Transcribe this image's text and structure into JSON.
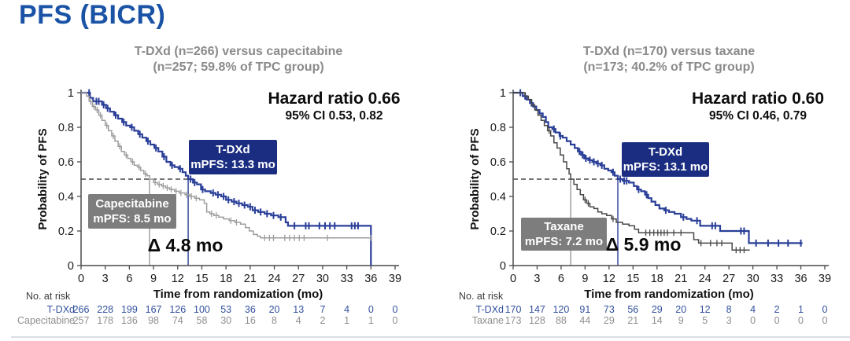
{
  "page": {
    "title": "PFS (BICR)"
  },
  "chart_data": [
    {
      "type": "line",
      "variant": "kaplan-meier",
      "title_lines": [
        "T-DXd (n=266) versus capecitabine",
        "(n=257; 59.8% of TPC group)"
      ],
      "hazard_ratio": "Hazard ratio 0.66",
      "ci": "95% CI 0.53, 0.82",
      "delta_label": "Δ 4.8 mo",
      "xlabel": "Time from randomization (mo)",
      "ylabel": "Probability of PFS",
      "xlim": [
        0,
        39
      ],
      "ylim": [
        0,
        1
      ],
      "xticks": [
        0,
        3,
        6,
        9,
        12,
        15,
        18,
        21,
        24,
        27,
        30,
        33,
        36,
        39
      ],
      "yticks": [
        0,
        0.2,
        0.4,
        0.6,
        0.8,
        1
      ],
      "median_rule_y": 0.5,
      "series": [
        {
          "name": "T-DXd",
          "role": "tdxd",
          "color": "#2a3f98",
          "median": 13.3,
          "box_lines": [
            "T-DXd",
            "mPFS: 13.3 mo"
          ],
          "points": [
            [
              0,
              1.0
            ],
            [
              1.1,
              0.97
            ],
            [
              1.5,
              0.95
            ],
            [
              2.6,
              0.93
            ],
            [
              3.1,
              0.91
            ],
            [
              3.6,
              0.89
            ],
            [
              4.1,
              0.87
            ],
            [
              4.6,
              0.85
            ],
            [
              5.1,
              0.83
            ],
            [
              5.6,
              0.81
            ],
            [
              6.1,
              0.8
            ],
            [
              6.6,
              0.78
            ],
            [
              7.1,
              0.76
            ],
            [
              7.6,
              0.74
            ],
            [
              8.1,
              0.72
            ],
            [
              8.6,
              0.7
            ],
            [
              9.1,
              0.68
            ],
            [
              9.6,
              0.66
            ],
            [
              10.1,
              0.63
            ],
            [
              10.6,
              0.6
            ],
            [
              11.1,
              0.58
            ],
            [
              11.6,
              0.57
            ],
            [
              12.1,
              0.56
            ],
            [
              12.6,
              0.54
            ],
            [
              13.0,
              0.52
            ],
            [
              13.3,
              0.5
            ],
            [
              13.9,
              0.48
            ],
            [
              14.4,
              0.47
            ],
            [
              14.9,
              0.44
            ],
            [
              15.4,
              0.43
            ],
            [
              16.1,
              0.42
            ],
            [
              16.7,
              0.41
            ],
            [
              17.4,
              0.4
            ],
            [
              18.0,
              0.38
            ],
            [
              18.7,
              0.37
            ],
            [
              19.3,
              0.36
            ],
            [
              20.0,
              0.35
            ],
            [
              20.7,
              0.34
            ],
            [
              21.3,
              0.32
            ],
            [
              22.0,
              0.31
            ],
            [
              22.8,
              0.3
            ],
            [
              23.6,
              0.29
            ],
            [
              24.5,
              0.28
            ],
            [
              25.4,
              0.25
            ],
            [
              25.7,
              0.23
            ],
            [
              36.0,
              0.23
            ],
            [
              36.0,
              0
            ]
          ],
          "censors": [
            1.0,
            1.9,
            2.2,
            2.8,
            3.3,
            4.3,
            5.3,
            6.3,
            7.3,
            8.3,
            9.3,
            10.3,
            11.3,
            12.3,
            13.6,
            14.1,
            15.1,
            16.4,
            17.0,
            17.7,
            18.3,
            19.0,
            19.6,
            20.3,
            21.0,
            21.6,
            22.3,
            23.1,
            23.9,
            24.8,
            26.5,
            27.9,
            28.3,
            29.6,
            30.3,
            30.9,
            31.5,
            33.6,
            34.0,
            34.4
          ]
        },
        {
          "name": "Capecitabine",
          "role": "comparator",
          "color": "#9d9d9d",
          "median": 8.5,
          "box_lines": [
            "Capecitabine",
            "mPFS: 8.5 mo"
          ],
          "points": [
            [
              0,
              1.0
            ],
            [
              0.7,
              0.98
            ],
            [
              1.0,
              0.95
            ],
            [
              1.4,
              0.92
            ],
            [
              1.8,
              0.9
            ],
            [
              2.2,
              0.87
            ],
            [
              2.6,
              0.84
            ],
            [
              3.0,
              0.81
            ],
            [
              3.4,
              0.78
            ],
            [
              3.8,
              0.75
            ],
            [
              4.2,
              0.72
            ],
            [
              4.6,
              0.69
            ],
            [
              5.0,
              0.66
            ],
            [
              5.4,
              0.64
            ],
            [
              5.8,
              0.62
            ],
            [
              6.2,
              0.6
            ],
            [
              6.6,
              0.58
            ],
            [
              7.0,
              0.57
            ],
            [
              7.4,
              0.55
            ],
            [
              7.8,
              0.53
            ],
            [
              8.2,
              0.52
            ],
            [
              8.5,
              0.5
            ],
            [
              9.0,
              0.48
            ],
            [
              9.5,
              0.47
            ],
            [
              10.0,
              0.46
            ],
            [
              10.5,
              0.45
            ],
            [
              11.0,
              0.44
            ],
            [
              11.6,
              0.43
            ],
            [
              12.2,
              0.42
            ],
            [
              12.9,
              0.41
            ],
            [
              13.5,
              0.4
            ],
            [
              14.1,
              0.39
            ],
            [
              14.7,
              0.38
            ],
            [
              15.3,
              0.36
            ],
            [
              15.6,
              0.31
            ],
            [
              16.0,
              0.3
            ],
            [
              16.5,
              0.29
            ],
            [
              17.1,
              0.28
            ],
            [
              17.7,
              0.27
            ],
            [
              18.4,
              0.26
            ],
            [
              19.1,
              0.25
            ],
            [
              19.8,
              0.24
            ],
            [
              20.4,
              0.22
            ],
            [
              20.9,
              0.2
            ],
            [
              21.4,
              0.18
            ],
            [
              21.9,
              0.17
            ],
            [
              22.3,
              0.16
            ],
            [
              36.0,
              0.16
            ]
          ],
          "censors": [
            1.2,
            1.6,
            2.0,
            2.4,
            3.2,
            4.0,
            4.8,
            5.6,
            6.4,
            7.2,
            8.0,
            9.2,
            9.7,
            10.2,
            10.7,
            11.2,
            11.8,
            12.4,
            13.1,
            13.7,
            14.3,
            16.2,
            16.8,
            18.6,
            19.3,
            22.8,
            23.4,
            23.9,
            25.3,
            25.9,
            26.5,
            27.1,
            27.7,
            30.6,
            36.0
          ]
        }
      ],
      "risk_table": {
        "heading": "No. at risk",
        "times": [
          0,
          3,
          6,
          9,
          12,
          15,
          18,
          21,
          24,
          27,
          30,
          33,
          36,
          39
        ],
        "rows": [
          {
            "name": "T-DXd",
            "color": "#33519e",
            "values": [
              266,
              228,
              199,
              167,
              126,
              100,
              53,
              36,
              20,
              13,
              7,
              4,
              0,
              0
            ]
          },
          {
            "name": "Capecitabine",
            "color": "#8f8f8f",
            "values": [
              257,
              178,
              136,
              98,
              74,
              58,
              30,
              16,
              8,
              4,
              2,
              1,
              1,
              0
            ]
          }
        ]
      }
    },
    {
      "type": "line",
      "variant": "kaplan-meier",
      "title_lines": [
        "T-DXd (n=170) versus taxane",
        "(n=173; 40.2% of TPC group)"
      ],
      "hazard_ratio": "Hazard ratio 0.60",
      "ci": "95% CI 0.46, 0.79",
      "delta_label": "Δ 5.9 mo",
      "xlabel": "Time from randomization (mo)",
      "ylabel": "Probability of PFS",
      "xlim": [
        0,
        39
      ],
      "ylim": [
        0,
        1
      ],
      "xticks": [
        0,
        3,
        6,
        9,
        12,
        15,
        18,
        21,
        24,
        27,
        30,
        33,
        36,
        39
      ],
      "yticks": [
        0,
        0.2,
        0.4,
        0.6,
        0.8,
        1
      ],
      "median_rule_y": 0.5,
      "series": [
        {
          "name": "T-DXd",
          "role": "tdxd",
          "color": "#2a3f98",
          "median": 13.1,
          "box_lines": [
            "T-DXd",
            "mPFS: 13.1 mo"
          ],
          "points": [
            [
              0,
              1.0
            ],
            [
              1.2,
              0.98
            ],
            [
              1.7,
              0.96
            ],
            [
              2.1,
              0.94
            ],
            [
              2.5,
              0.92
            ],
            [
              2.9,
              0.9
            ],
            [
              3.3,
              0.88
            ],
            [
              3.7,
              0.86
            ],
            [
              4.1,
              0.83
            ],
            [
              4.4,
              0.8
            ],
            [
              4.9,
              0.79
            ],
            [
              5.3,
              0.77
            ],
            [
              5.8,
              0.75
            ],
            [
              6.2,
              0.74
            ],
            [
              6.7,
              0.72
            ],
            [
              7.2,
              0.7
            ],
            [
              7.7,
              0.68
            ],
            [
              8.1,
              0.66
            ],
            [
              8.5,
              0.64
            ],
            [
              8.9,
              0.62
            ],
            [
              9.4,
              0.61
            ],
            [
              9.9,
              0.6
            ],
            [
              10.4,
              0.59
            ],
            [
              10.9,
              0.58
            ],
            [
              11.4,
              0.56
            ],
            [
              11.9,
              0.55
            ],
            [
              12.3,
              0.54
            ],
            [
              12.7,
              0.52
            ],
            [
              13.1,
              0.5
            ],
            [
              13.7,
              0.49
            ],
            [
              14.5,
              0.48
            ],
            [
              15.1,
              0.46
            ],
            [
              15.5,
              0.44
            ],
            [
              16.0,
              0.43
            ],
            [
              16.5,
              0.41
            ],
            [
              16.9,
              0.39
            ],
            [
              17.3,
              0.37
            ],
            [
              17.8,
              0.35
            ],
            [
              18.3,
              0.33
            ],
            [
              18.9,
              0.32
            ],
            [
              19.5,
              0.31
            ],
            [
              20.2,
              0.3
            ],
            [
              21.0,
              0.28
            ],
            [
              21.7,
              0.27
            ],
            [
              22.3,
              0.26
            ],
            [
              23.4,
              0.23
            ],
            [
              25.9,
              0.2
            ],
            [
              29.5,
              0.13
            ],
            [
              36.2,
              0.13
            ]
          ],
          "censors": [
            0.9,
            1.5,
            2.3,
            5.1,
            5.9,
            8.3,
            8.7,
            9.1,
            9.6,
            10.1,
            10.6,
            11.1,
            12.5,
            13.4,
            13.9,
            14.2,
            15.7,
            16.7,
            19.1,
            21.3,
            23.0,
            24.9,
            25.3,
            28.5,
            28.9,
            30.4,
            31.9,
            33.2,
            34.4,
            36.0
          ]
        },
        {
          "name": "Taxane",
          "role": "comparator",
          "color": "#474747",
          "median": 7.2,
          "box_lines": [
            "Taxane",
            "mPFS: 7.2 mo"
          ],
          "points": [
            [
              0,
              1.0
            ],
            [
              1.5,
              0.98
            ],
            [
              1.9,
              0.96
            ],
            [
              2.3,
              0.93
            ],
            [
              2.7,
              0.9
            ],
            [
              3.1,
              0.87
            ],
            [
              3.5,
              0.84
            ],
            [
              3.9,
              0.81
            ],
            [
              4.3,
              0.78
            ],
            [
              4.7,
              0.75
            ],
            [
              5.1,
              0.71
            ],
            [
              5.5,
              0.68
            ],
            [
              5.9,
              0.64
            ],
            [
              6.3,
              0.6
            ],
            [
              6.7,
              0.56
            ],
            [
              7.0,
              0.53
            ],
            [
              7.2,
              0.5
            ],
            [
              7.6,
              0.47
            ],
            [
              8.0,
              0.44
            ],
            [
              8.4,
              0.41
            ],
            [
              8.8,
              0.38
            ],
            [
              9.2,
              0.36
            ],
            [
              9.6,
              0.34
            ],
            [
              10.1,
              0.33
            ],
            [
              10.6,
              0.31
            ],
            [
              11.1,
              0.3
            ],
            [
              11.7,
              0.29
            ],
            [
              12.3,
              0.27
            ],
            [
              12.9,
              0.25
            ],
            [
              13.7,
              0.24
            ],
            [
              14.5,
              0.23
            ],
            [
              15.2,
              0.21
            ],
            [
              15.7,
              0.19
            ],
            [
              22.6,
              0.15
            ],
            [
              23.2,
              0.13
            ],
            [
              27.4,
              0.09
            ],
            [
              29.6,
              0.09
            ]
          ],
          "censors": [
            4.5,
            9.0,
            9.4,
            12.5,
            16.6,
            17.1,
            17.6,
            18.1,
            18.5,
            18.9,
            19.3,
            20.1,
            21.0,
            23.5,
            24.7,
            25.5,
            26.1,
            27.9,
            28.4,
            28.9
          ]
        }
      ],
      "risk_table": {
        "heading": "No. at risk",
        "times": [
          0,
          3,
          6,
          9,
          12,
          15,
          18,
          21,
          24,
          27,
          30,
          33,
          36,
          39
        ],
        "rows": [
          {
            "name": "T-DXd",
            "color": "#33519e",
            "values": [
              170,
              147,
              120,
              91,
              73,
              56,
              29,
              20,
              12,
              8,
              4,
              2,
              1,
              0
            ]
          },
          {
            "name": "Taxane",
            "color": "#8f8f8f",
            "values": [
              173,
              128,
              88,
              44,
              29,
              21,
              14,
              9,
              5,
              3,
              0,
              0,
              0,
              0
            ]
          }
        ]
      }
    }
  ]
}
